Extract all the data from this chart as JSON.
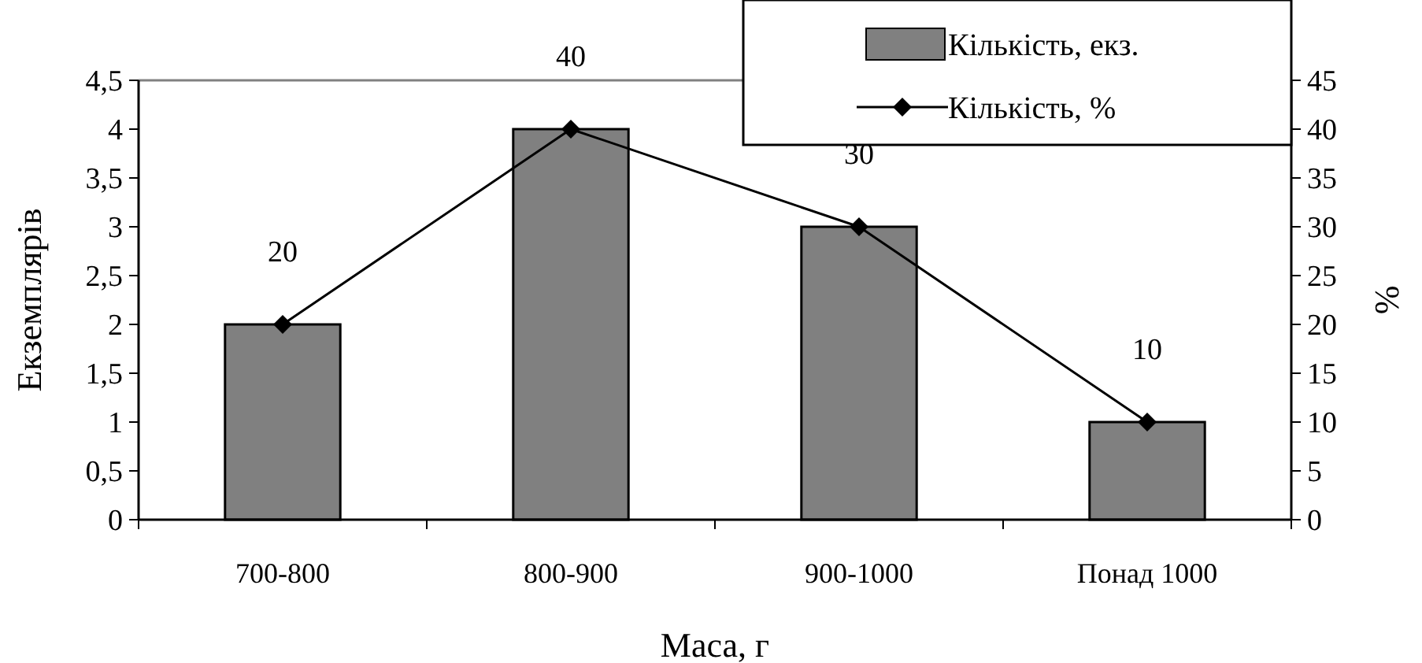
{
  "chart_data": {
    "type": "bar",
    "categories": [
      "700-800",
      "800-900",
      "900-1000",
      "Понад 1000"
    ],
    "xlabel": "Маса, г",
    "ylabel": "Екземплярів",
    "y2label": "%",
    "series": [
      {
        "name": "Кількість, екз.",
        "color": "#808080",
        "values": [
          2,
          4,
          3,
          1
        ]
      },
      {
        "name": "Кількість, %",
        "type": "line",
        "axis": "y2",
        "color": "#000000",
        "marker": "diamond",
        "values": [
          20,
          40,
          30,
          10
        ],
        "value_labels": [
          "20",
          "40",
          "30",
          "10"
        ]
      }
    ],
    "ylim": [
      0,
      4.5
    ],
    "yticks": [
      0,
      {
        "value": 0.5,
        "label": "0,5"
      },
      1,
      {
        "value": 1.5,
        "label": "1,5"
      },
      2,
      {
        "value": 2.5,
        "label": "2,5"
      },
      3,
      {
        "value": 3.5,
        "label": "3,5"
      },
      4,
      {
        "value": 4.5,
        "label": "4,5"
      }
    ],
    "y2lim": [
      0,
      45
    ],
    "y2ticks": [
      0,
      5,
      10,
      15,
      20,
      25,
      30,
      35,
      40,
      45
    ],
    "legend": "top right"
  }
}
